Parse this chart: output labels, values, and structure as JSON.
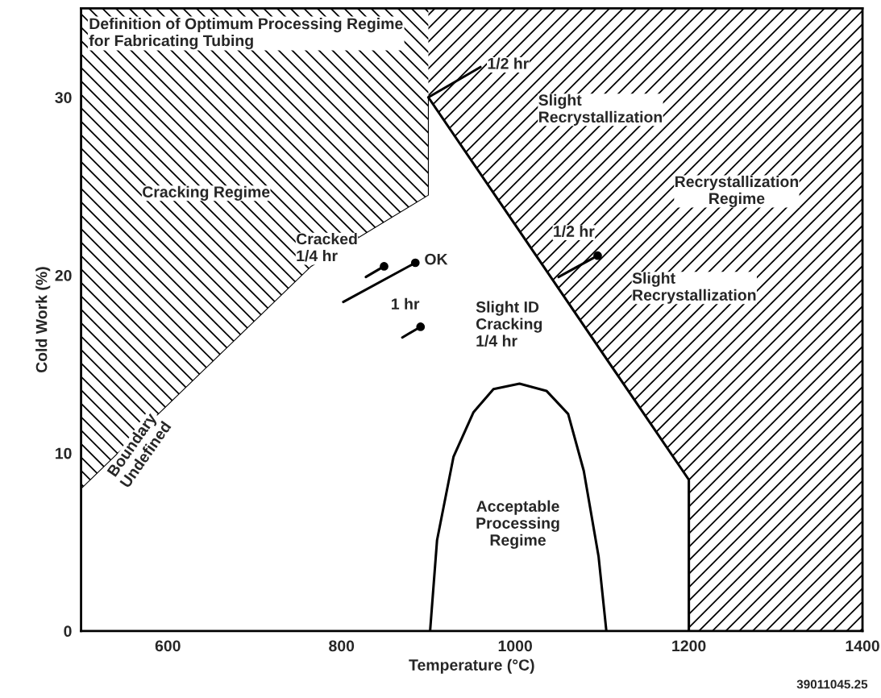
{
  "chart_data": {
    "type": "line",
    "title": "Definition of Optimum Processing Regime\nfor Fabricating Tubing",
    "xlabel": "Temperature (°C)",
    "ylabel": "Cold Work (%)",
    "xlim": [
      500,
      1400
    ],
    "xticks": [
      600,
      800,
      1000,
      1200,
      1400
    ],
    "ylim": [
      0,
      35
    ],
    "yticks": [
      0,
      10,
      20,
      30
    ],
    "grid": false,
    "series": [
      {
        "color": "#000000",
        "x": [
          500,
          765,
          900,
          900
        ],
        "values": [
          8,
          20.5,
          24.5,
          30
        ]
      },
      {
        "color": "#000000",
        "x": [
          900,
          1200,
          1200
        ],
        "values": [
          30,
          8.5,
          0
        ]
      },
      {
        "color": "#000000",
        "x": [
          902,
          910,
          929,
          952,
          975,
          1005,
          1036,
          1061,
          1079,
          1096,
          1105
        ],
        "values": [
          0,
          5.1,
          9.8,
          12.3,
          13.6,
          13.9,
          13.5,
          12.2,
          9.0,
          4.2,
          0
        ]
      },
      {
        "color": "#000000",
        "x": [
          802,
          885
        ],
        "values": [
          18.5,
          20.7
        ]
      },
      {
        "color": "#000000",
        "x": [
          828,
          849
        ],
        "values": [
          19.9,
          20.5
        ]
      },
      {
        "color": "#000000",
        "x": [
          870,
          891
        ],
        "values": [
          16.5,
          17.1
        ]
      },
      {
        "color": "#000000",
        "x": [
          1050,
          1095
        ],
        "values": [
          19.9,
          21.1
        ]
      },
      {
        "color": "#000000",
        "x": [
          900,
          960
        ],
        "values": [
          30,
          31.7
        ]
      },
      {
        "type": "scatter",
        "color": "#000000",
        "marker": "circle",
        "x": [
          885,
          849,
          891,
          1095
        ],
        "values": [
          20.7,
          20.5,
          17.1,
          21.1
        ]
      }
    ],
    "annotations": [
      "Cracking Regime",
      "Cracked\n1/4 hr",
      {
        "text": "OK",
        "x": 885,
        "y": 20.7
      },
      {
        "text": "1 hr",
        "x": 849,
        "y": 19.6
      },
      "Slight ID\nCracking\n1/4 hr",
      "Acceptable\nProcessing\nRegime",
      {
        "text": "1/2 hr",
        "x": 960,
        "y": 31.7
      },
      "Slight\nRecrystallization",
      "Recrystallization\nRegime",
      {
        "text": "1/2 hr",
        "x": 1095,
        "y": 21.1
      },
      "Slight\nRecrystallization",
      "Boundary\nUndefined",
      "39011045.25"
    ]
  }
}
